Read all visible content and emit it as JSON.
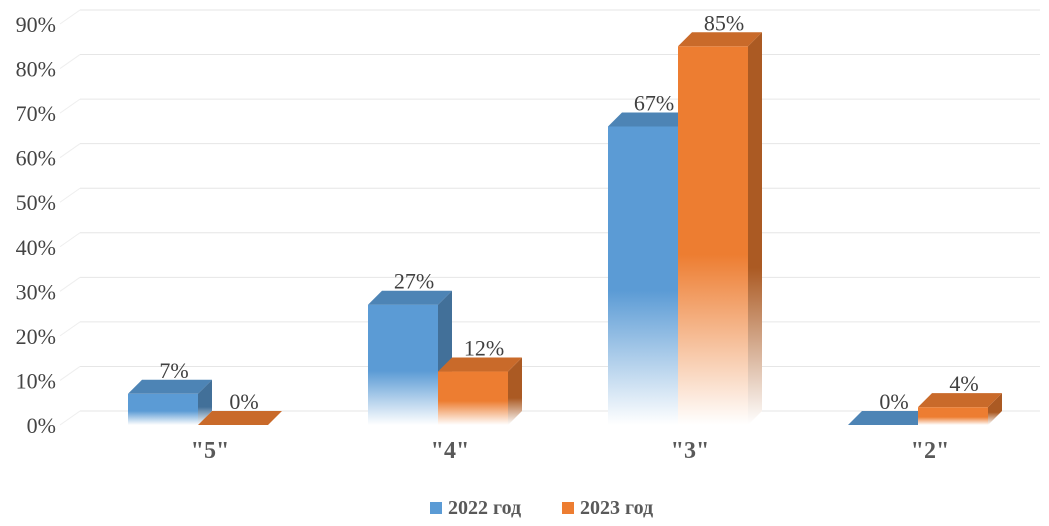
{
  "chart_data": {
    "type": "bar",
    "categories": [
      "\"5\"",
      "\"4\"",
      "\"3\"",
      "\"2\""
    ],
    "series": [
      {
        "name": "2022 год",
        "values": [
          7,
          27,
          67,
          0
        ],
        "labels": [
          "7%",
          "27%",
          "67%",
          "0%"
        ],
        "color": "#5B9BD5"
      },
      {
        "name": "2023 год",
        "values": [
          0,
          12,
          85,
          4
        ],
        "labels": [
          "0%",
          "12%",
          "85%",
          "4%"
        ],
        "color": "#ED7D31"
      }
    ],
    "y_ticks": [
      "0%",
      "10%",
      "20%",
      "30%",
      "40%",
      "50%",
      "60%",
      "70%",
      "80%",
      "90%"
    ],
    "ylim": [
      0,
      90
    ],
    "grid": true,
    "legend": "bottom",
    "style": "3d-clustered-column"
  }
}
